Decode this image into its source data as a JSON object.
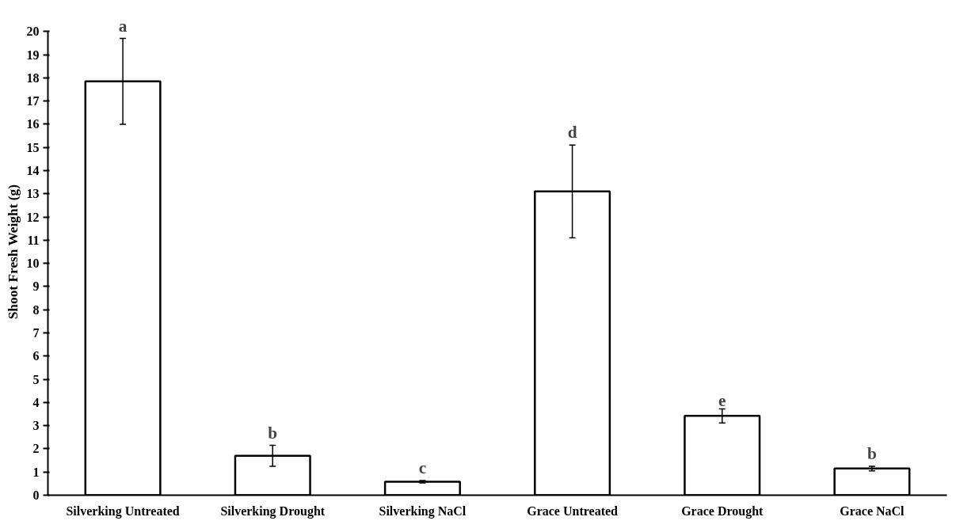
{
  "chart_data": {
    "type": "bar",
    "ylabel": "Shoot Fresh Weight (g)",
    "categories": [
      "Silverking Untreated",
      "Silverking Drought",
      "Silverking NaCl",
      "Grace Untreated",
      "Grace Drought",
      "Grace NaCl"
    ],
    "values": [
      17.85,
      1.7,
      0.58,
      13.1,
      3.42,
      1.15
    ],
    "errors": [
      1.85,
      0.45,
      0.05,
      2.0,
      0.3,
      0.1
    ],
    "color": "#ffffff",
    "ylim": [
      0,
      20
    ],
    "yticks": [
      0,
      1,
      2,
      3,
      4,
      5,
      6,
      7,
      8,
      9,
      10,
      11,
      12,
      13,
      14,
      15,
      16,
      17,
      18,
      19,
      20
    ],
    "grid": false,
    "annotations": [
      {
        "text": "a",
        "x": "Silverking Untreated",
        "y": 19.7
      },
      {
        "text": "b",
        "x": "Silverking Drought",
        "y": 2.15
      },
      {
        "text": "c",
        "x": "Silverking NaCl",
        "y": 0.63
      },
      {
        "text": "d",
        "x": "Grace Untreated",
        "y": 15.1
      },
      {
        "text": "e",
        "x": "Grace Drought",
        "y": 3.72
      },
      {
        "text": "b",
        "x": "Grace NaCl",
        "y": 1.25
      }
    ]
  }
}
